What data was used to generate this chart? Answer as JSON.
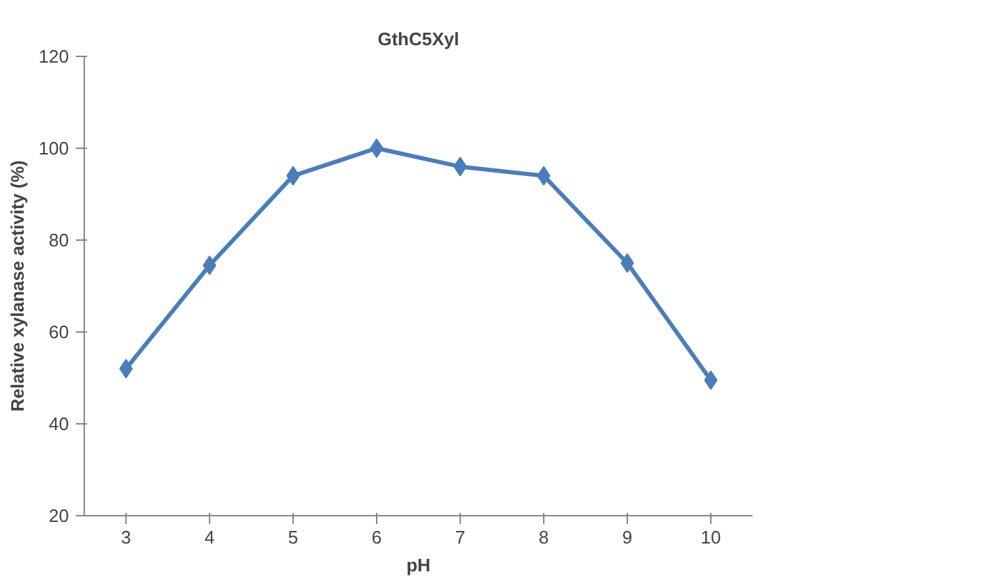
{
  "chart_data": {
    "type": "line",
    "title": "GthC5Xyl",
    "xlabel": "pH",
    "ylabel": "Relative xylanase activity (%)",
    "categories": [
      "3",
      "4",
      "5",
      "6",
      "7",
      "8",
      "9",
      "10"
    ],
    "series": [
      {
        "color": "#4a7ebb",
        "values": [
          52,
          74.5,
          94,
          100,
          96,
          94,
          75,
          49.5
        ]
      }
    ],
    "ylim": [
      20,
      120
    ],
    "yticks": [
      20,
      40,
      60,
      80,
      100,
      120
    ],
    "grid": false,
    "marker": "diamond",
    "line_style": "solid"
  }
}
